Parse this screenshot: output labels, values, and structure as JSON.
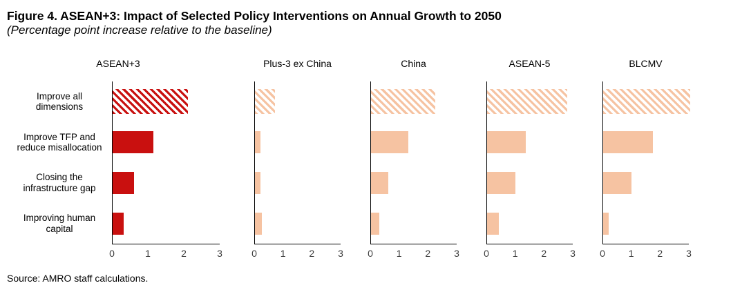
{
  "figure": {
    "title": "Figure 4. ASEAN+3: Impact of Selected Policy Interventions on Annual Growth to 2050",
    "subtitle": "(Percentage point increase relative to the baseline)",
    "source": "Source: AMRO staff calculations."
  },
  "chart_data": {
    "type": "bar",
    "orientation": "horizontal",
    "title": "Figure 4. ASEAN+3: Impact of Selected Policy Interventions on Annual Growth to 2050",
    "subtitle": "(Percentage point increase relative to the baseline)",
    "xlabel": "",
    "ylabel": "",
    "xlim": [
      0,
      3
    ],
    "xticks": [
      0,
      1,
      2,
      3
    ],
    "grid": false,
    "categories": [
      "Improve all dimensions",
      "Improve TFP and reduce misallocation",
      "Closing the infrastructure gap",
      "Improving human capital"
    ],
    "category_lines": [
      [
        "Improve all",
        "dimensions"
      ],
      [
        "Improve TFP and",
        "reduce misallocation"
      ],
      [
        "Closing the",
        "infrastructure gap"
      ],
      [
        "Improving human",
        "capital"
      ]
    ],
    "hatched_category": "Improve all dimensions",
    "hatch_style": "diagonal-stripes-45deg",
    "colors": {
      "asean3_accent": "#C9100F",
      "light_peach": "#F6C3A2",
      "axis": "#000000",
      "tick_text": "#3d3d3d"
    },
    "panels": [
      {
        "title": "ASEAN+3",
        "color": "#C9100F",
        "values": [
          2.1,
          1.15,
          0.6,
          0.3
        ]
      },
      {
        "title": "Plus-3 ex China",
        "color": "#F6C3A2",
        "values": [
          0.7,
          0.2,
          0.2,
          0.25
        ]
      },
      {
        "title": "China",
        "color": "#F6C3A2",
        "values": [
          2.25,
          1.3,
          0.6,
          0.3
        ]
      },
      {
        "title": "ASEAN-5",
        "color": "#F6C3A2",
        "values": [
          2.8,
          1.35,
          1.0,
          0.4
        ]
      },
      {
        "title": "BLCMV",
        "color": "#F6C3A2",
        "values": [
          3.05,
          1.75,
          1.0,
          0.2
        ]
      }
    ]
  }
}
